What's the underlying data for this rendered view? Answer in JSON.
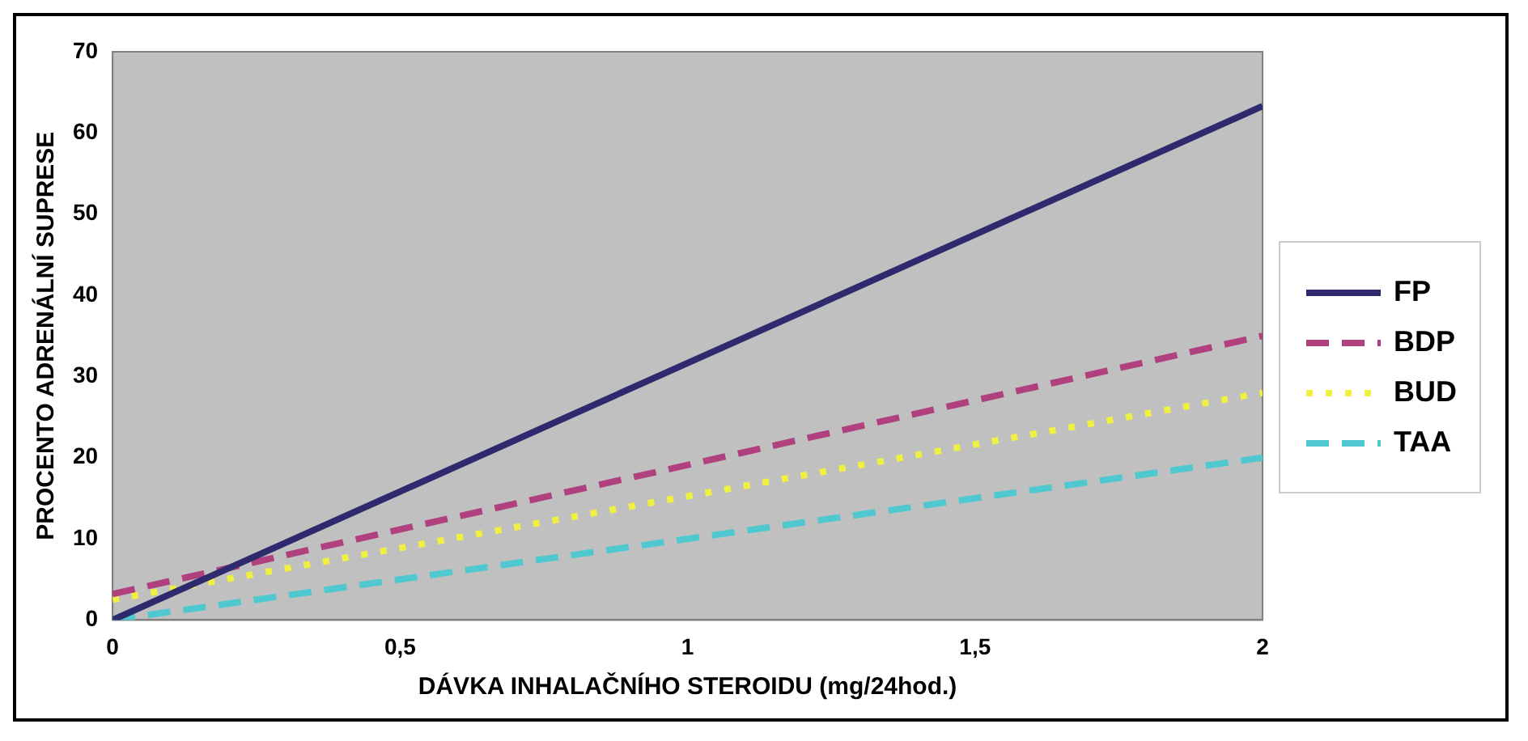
{
  "chart_data": {
    "type": "line",
    "xlabel": "DÁVKA INHALAČNÍHO STEROIDU (mg/24hod.)",
    "ylabel": "PROCENTO ADRENÁLNÍ SUPRESE",
    "x": [
      0,
      2
    ],
    "series": [
      {
        "name": "FP",
        "color": "#2e2a6e",
        "values": [
          0,
          63.3
        ],
        "line_style": "solid"
      },
      {
        "name": "BDP",
        "color": "#b0407e",
        "values": [
          3.2,
          35
        ],
        "line_style": "dashed"
      },
      {
        "name": "BUD",
        "color": "#f0f040",
        "values": [
          2.5,
          28
        ],
        "line_style": "dotted"
      },
      {
        "name": "TAA",
        "color": "#50c8d0",
        "values": [
          0,
          20
        ],
        "line_style": "dashed"
      }
    ],
    "xlim": [
      0,
      2
    ],
    "xticks": [
      0,
      {
        "value": 0.5,
        "label": "0,5"
      },
      1,
      {
        "value": 1.5,
        "label": "1,5"
      },
      2
    ],
    "ylim": [
      0,
      70
    ],
    "yticks": [
      0,
      10,
      20,
      30,
      40,
      50,
      60,
      70
    ],
    "grid": false,
    "legend": "right",
    "marker": "none"
  }
}
